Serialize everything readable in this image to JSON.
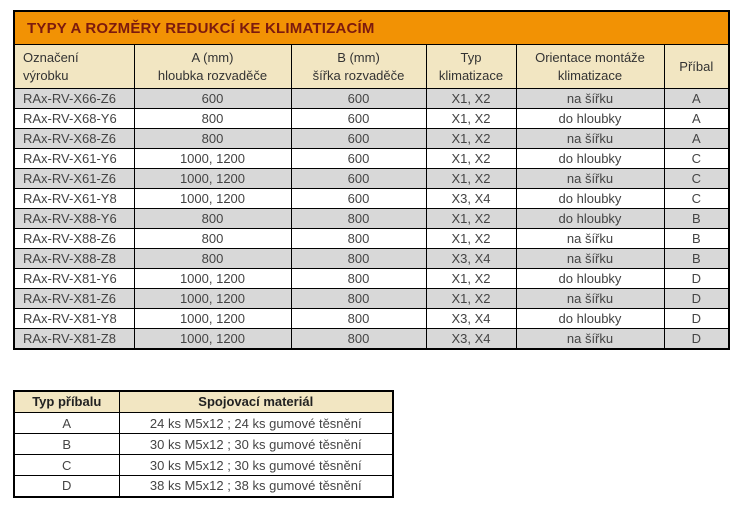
{
  "main_table": {
    "title": "TYPY A ROZMĚRY REDUKCÍ KE KLIMATIZACÍM",
    "headers": [
      "Označení\nvýrobku",
      "A (mm)\nhloubka rozvaděče",
      "B (mm)\nšířka rozvaděče",
      "Typ\nklimatizace",
      "Orientace montáže\nklimatizace",
      "Příbal"
    ],
    "rows": [
      [
        "RAx-RV-X66-Z6",
        "600",
        "600",
        "X1, X2",
        "na šířku",
        "A"
      ],
      [
        "RAx-RV-X68-Y6",
        "800",
        "600",
        "X1, X2",
        "do hloubky",
        "A"
      ],
      [
        "RAx-RV-X68-Z6",
        "800",
        "600",
        "X1, X2",
        "na šířku",
        "A"
      ],
      [
        "RAx-RV-X61-Y6",
        "1000, 1200",
        "600",
        "X1, X2",
        "do hloubky",
        "C"
      ],
      [
        "RAx-RV-X61-Z6",
        "1000, 1200",
        "600",
        "X1, X2",
        "na šířku",
        "C"
      ],
      [
        "RAx-RV-X61-Y8",
        "1000, 1200",
        "600",
        "X3, X4",
        "do hloubky",
        "C"
      ],
      [
        "RAx-RV-X88-Y6",
        "800",
        "800",
        "X1, X2",
        "do hloubky",
        "B"
      ],
      [
        "RAx-RV-X88-Z6",
        "800",
        "800",
        "X1, X2",
        "na šířku",
        "B"
      ],
      [
        "RAx-RV-X88-Z8",
        "800",
        "800",
        "X3, X4",
        "na šířku",
        "B"
      ],
      [
        "RAx-RV-X81-Y6",
        "1000, 1200",
        "800",
        "X1, X2",
        "do hloubky",
        "D"
      ],
      [
        "RAx-RV-X81-Z6",
        "1000, 1200",
        "800",
        "X1, X2",
        "na šířku",
        "D"
      ],
      [
        "RAx-RV-X81-Y8",
        "1000, 1200",
        "800",
        "X3, X4",
        "do hloubky",
        "D"
      ],
      [
        "RAx-RV-X81-Z8",
        "1000, 1200",
        "800",
        "X3, X4",
        "na šířku",
        "D"
      ]
    ]
  },
  "accessory_table": {
    "headers": [
      "Typ příbalu",
      "Spojovací materiál"
    ],
    "rows": [
      [
        "A",
        "24 ks M5x12 ; 24 ks gumové těsnění"
      ],
      [
        "B",
        "30 ks M5x12 ; 30 ks gumové těsnění"
      ],
      [
        "C",
        "30 ks M5x12 ; 30 ks gumové těsnění"
      ],
      [
        "D",
        "38 ks M5x12 ; 38 ks gumové těsnění"
      ]
    ]
  },
  "colors": {
    "title_bg": "#F29204",
    "title_text": "#7C1A0E",
    "header_bg": "#F2E6C2",
    "alt_row_bg": "#D8D8D8",
    "row_bg": "#FFFFFF",
    "data_text": "#444444",
    "border": "#000000"
  }
}
